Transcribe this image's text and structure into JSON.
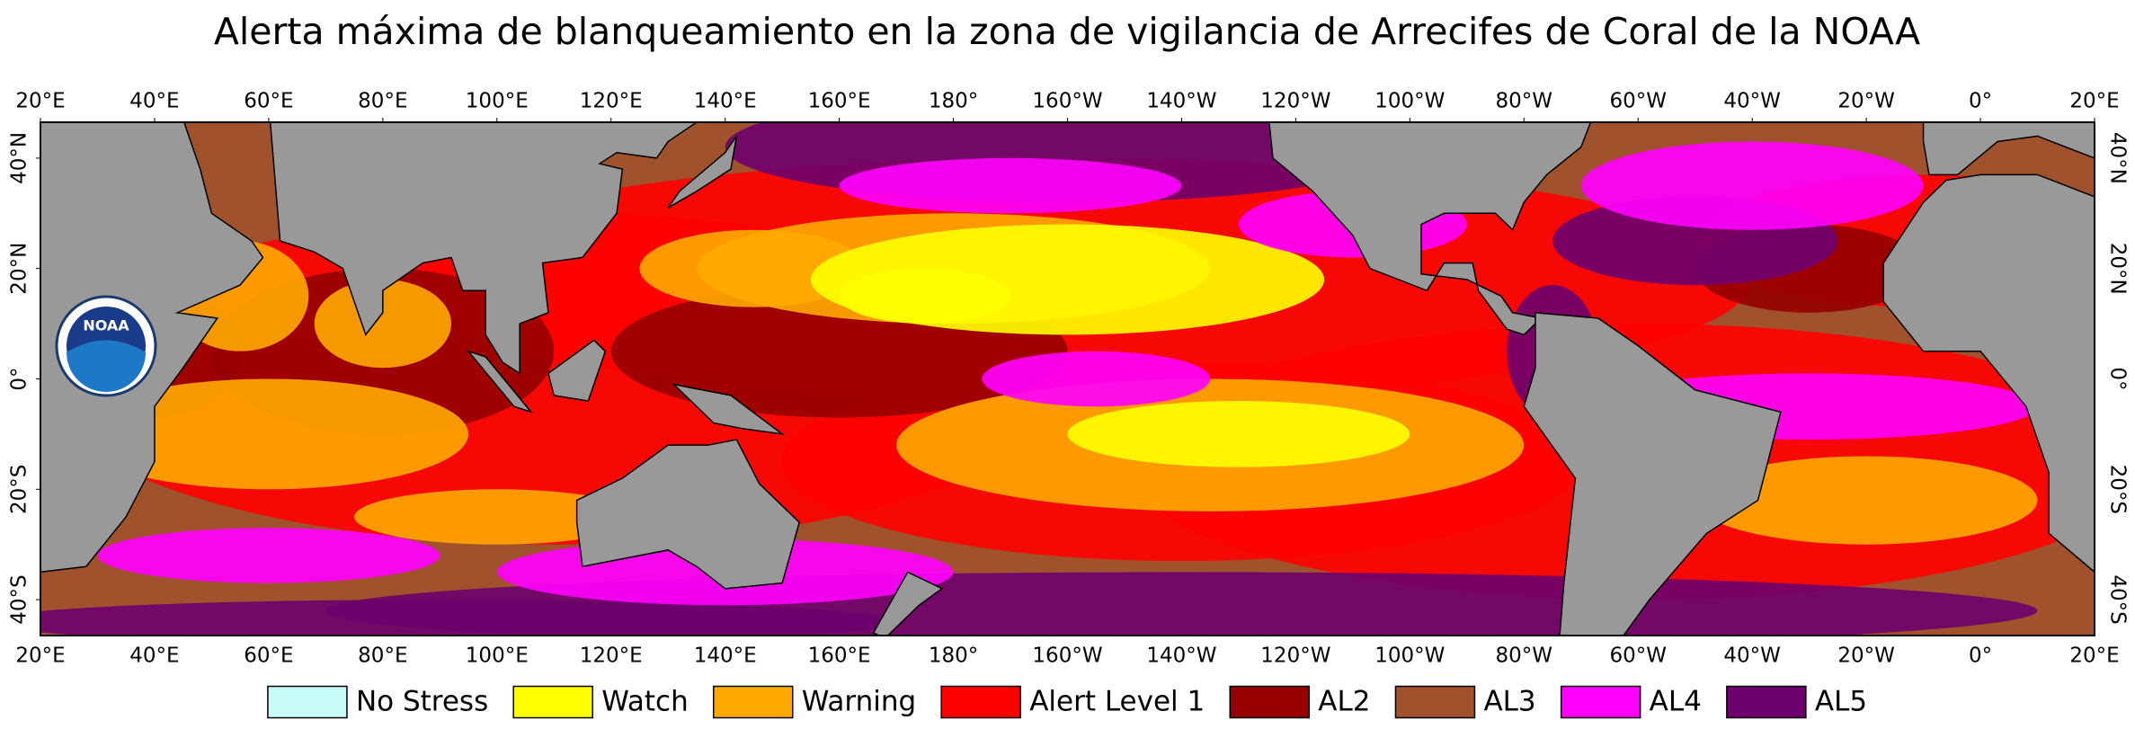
{
  "title": "Alerta máxima de blanqueamiento en la zona de vigilancia de Arrecifes de Coral de la NOAA",
  "logo_text": "NOAA",
  "lon_range": [
    20,
    380
  ],
  "lat_range": [
    -46.5,
    46.5
  ],
  "longitude_ticks": [
    {
      "value": 20,
      "label": "20°E"
    },
    {
      "value": 40,
      "label": "40°E"
    },
    {
      "value": 60,
      "label": "60°E"
    },
    {
      "value": 80,
      "label": "80°E"
    },
    {
      "value": 100,
      "label": "100°E"
    },
    {
      "value": 120,
      "label": "120°E"
    },
    {
      "value": 140,
      "label": "140°E"
    },
    {
      "value": 160,
      "label": "160°E"
    },
    {
      "value": 180,
      "label": "180°"
    },
    {
      "value": 200,
      "label": "160°W"
    },
    {
      "value": 220,
      "label": "140°W"
    },
    {
      "value": 240,
      "label": "120°W"
    },
    {
      "value": 260,
      "label": "100°W"
    },
    {
      "value": 280,
      "label": "80°W"
    },
    {
      "value": 300,
      "label": "60°W"
    },
    {
      "value": 320,
      "label": "40°W"
    },
    {
      "value": 340,
      "label": "20°W"
    },
    {
      "value": 360,
      "label": "0°"
    },
    {
      "value": 380,
      "label": "20°E"
    }
  ],
  "latitude_ticks": [
    {
      "value": 40,
      "label": "40°N"
    },
    {
      "value": 20,
      "label": "20°N"
    },
    {
      "value": 0,
      "label": "0°"
    },
    {
      "value": -20,
      "label": "20°S"
    },
    {
      "value": -40,
      "label": "40°S"
    }
  ],
  "legend": [
    {
      "label": "No Stress",
      "color": "#c8fafa"
    },
    {
      "label": "Watch",
      "color": "#ffff00"
    },
    {
      "label": "Warning",
      "color": "#ffaa00"
    },
    {
      "label": "Alert Level 1",
      "color": "#ff0000"
    },
    {
      "label": "AL2",
      "color": "#960000"
    },
    {
      "label": "AL3",
      "color": "#a0522d"
    },
    {
      "label": "AL4",
      "color": "#ff00ff"
    },
    {
      "label": "AL5",
      "color": "#6e006e"
    }
  ]
}
